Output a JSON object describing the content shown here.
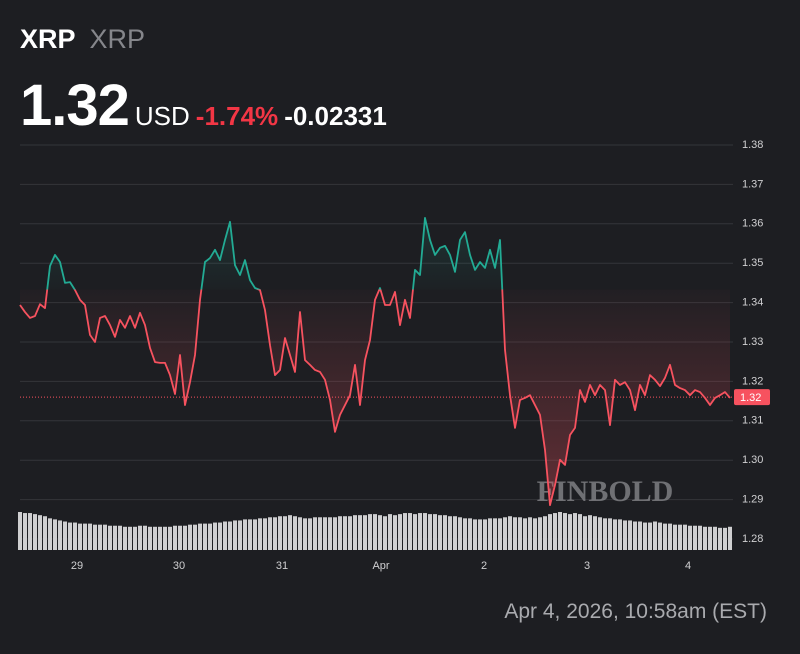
{
  "header": {
    "symbol": "XRP",
    "name": "XRP",
    "price": 1.32,
    "currency": "USD",
    "change_pct": "-1.74%",
    "change": -0.02331
  },
  "chart_data": {
    "type": "line",
    "values": [
      1.3394,
      1.3376,
      1.3361,
      1.3366,
      1.3396,
      1.3386,
      1.3493,
      1.3521,
      1.3503,
      1.345,
      1.3452,
      1.3432,
      1.3407,
      1.3394,
      1.3318,
      1.33,
      1.3361,
      1.3366,
      1.3343,
      1.3313,
      1.3356,
      1.3336,
      1.3366,
      1.3336,
      1.3374,
      1.3343,
      1.3285,
      1.3249,
      1.3247,
      1.3247,
      1.3216,
      1.3168,
      1.3267,
      1.314,
      1.3198,
      1.3267,
      1.3407,
      1.3503,
      1.3513,
      1.3534,
      1.3508,
      1.3559,
      1.3605,
      1.3495,
      1.347,
      1.3508,
      1.3457,
      1.3437,
      1.3432,
      1.3381,
      1.3292,
      1.3216,
      1.3229,
      1.331,
      1.3267,
      1.3224,
      1.3376,
      1.3254,
      1.3242,
      1.3229,
      1.3224,
      1.3204,
      1.3153,
      1.3072,
      1.3115,
      1.314,
      1.3165,
      1.3242,
      1.314,
      1.3254,
      1.3305,
      1.3407,
      1.3437,
      1.3394,
      1.3394,
      1.3427,
      1.3343,
      1.3407,
      1.3361,
      1.3483,
      1.347,
      1.3615,
      1.3559,
      1.3521,
      1.3539,
      1.3544,
      1.3521,
      1.3478,
      1.3559,
      1.3579,
      1.3521,
      1.3483,
      1.3503,
      1.3488,
      1.3534,
      1.3488,
      1.3559,
      1.328,
      1.3165,
      1.3082,
      1.3153,
      1.3158,
      1.3165,
      1.314,
      1.3115,
      1.3026,
      1.2886,
      1.2937,
      1.3001,
      1.2988,
      1.3064,
      1.3082,
      1.3178,
      1.3148,
      1.3191,
      1.3165,
      1.3191,
      1.3178,
      1.3089,
      1.3204,
      1.3191,
      1.3198,
      1.3178,
      1.3127,
      1.3191,
      1.3165,
      1.3216,
      1.3204,
      1.3188,
      1.3209,
      1.3242,
      1.3191,
      1.3183,
      1.3178,
      1.3165,
      1.3178,
      1.3173,
      1.3158,
      1.314,
      1.3158,
      1.3165,
      1.3173,
      1.3158
    ],
    "volume": [
      36,
      35,
      35,
      34,
      33,
      32,
      30,
      29,
      28,
      27,
      26,
      26,
      25,
      25,
      25,
      24,
      24,
      24,
      23,
      23,
      23,
      22,
      22,
      22,
      23,
      23,
      22,
      22,
      22,
      22,
      22,
      23,
      23,
      23,
      24,
      24,
      25,
      25,
      25,
      26,
      26,
      27,
      27,
      28,
      28,
      29,
      29,
      29,
      30,
      30,
      31,
      31,
      32,
      32,
      33,
      32,
      31,
      30,
      30,
      31,
      31,
      31,
      31,
      31,
      32,
      32,
      32,
      33,
      33,
      33,
      34,
      34,
      33,
      32,
      34,
      33,
      34,
      35,
      35,
      34,
      35,
      35,
      34,
      34,
      33,
      33,
      32,
      32,
      31,
      30,
      30,
      29,
      29,
      29,
      30,
      30,
      30,
      31,
      32,
      31,
      31,
      30,
      31,
      30,
      31,
      32,
      34,
      35,
      36,
      35,
      34,
      35,
      34,
      32,
      33,
      32,
      31,
      30,
      30,
      29,
      29,
      28,
      28,
      27,
      27,
      26,
      26,
      27,
      26,
      25,
      25,
      24,
      24,
      24,
      23,
      23,
      23,
      22,
      22,
      22,
      21,
      21,
      22
    ],
    "up_color": "#22ab94",
    "down_color": "#f7525f",
    "volume_color": "#cfcfd1",
    "xlim": [
      0,
      142
    ],
    "xticks": [
      {
        "value": 11.4,
        "label": "29"
      },
      {
        "value": 31.8,
        "label": "30"
      },
      {
        "value": 52.4,
        "label": "31"
      },
      {
        "value": 72.2,
        "label": "Apr"
      },
      {
        "value": 92.8,
        "label": "2"
      },
      {
        "value": 113.4,
        "label": "3"
      },
      {
        "value": 133.6,
        "label": "4"
      }
    ],
    "ylim": [
      1.28,
      1.38
    ],
    "yticks": [
      1.28,
      1.29,
      {
        "value": 1.3,
        "label": "1.30"
      },
      1.31,
      1.32,
      1.33,
      1.34,
      1.35,
      1.36,
      1.37,
      1.38
    ],
    "price_marker": {
      "value": 1.316,
      "label": "1.32"
    },
    "grid": true,
    "watermark": "FINBOLD"
  },
  "footer": {
    "timestamp": "Apr 4, 2026, 10:58am (EST)"
  }
}
